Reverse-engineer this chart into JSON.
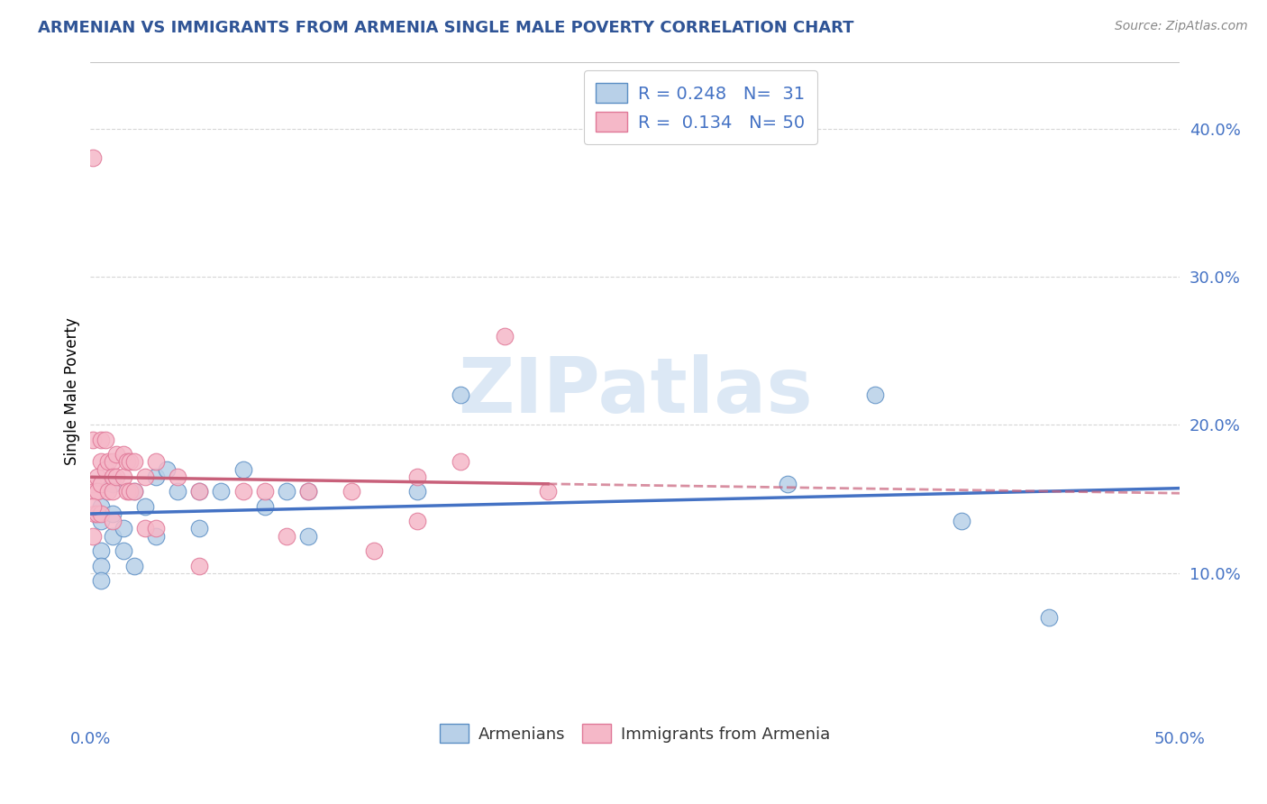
{
  "title": "ARMENIAN VS IMMIGRANTS FROM ARMENIA SINGLE MALE POVERTY CORRELATION CHART",
  "source": "Source: ZipAtlas.com",
  "ylabel": "Single Male Poverty",
  "xlim": [
    0.0,
    0.5
  ],
  "ylim": [
    0.0,
    0.445
  ],
  "yticks": [
    0.1,
    0.2,
    0.3,
    0.4
  ],
  "ytick_labels": [
    "10.0%",
    "20.0%",
    "30.0%",
    "40.0%"
  ],
  "blue_R": 0.248,
  "blue_N": 31,
  "pink_R": 0.134,
  "pink_N": 50,
  "blue_color": "#b8d0e8",
  "pink_color": "#f5b8c8",
  "blue_edge_color": "#5b8ec4",
  "pink_edge_color": "#e07898",
  "blue_line_color": "#4472c4",
  "pink_line_color": "#c8607a",
  "watermark": "ZIPatlas",
  "watermark_color": "#dce8f5",
  "background_color": "#ffffff",
  "grid_color": "#cccccc",
  "legend_text_color": "#4472c4",
  "title_color": "#2f5496",
  "blue_scatter_x": [
    0.005,
    0.005,
    0.005,
    0.005,
    0.005,
    0.01,
    0.01,
    0.01,
    0.015,
    0.015,
    0.02,
    0.02,
    0.025,
    0.03,
    0.03,
    0.035,
    0.04,
    0.05,
    0.05,
    0.06,
    0.07,
    0.08,
    0.09,
    0.1,
    0.1,
    0.15,
    0.17,
    0.32,
    0.36,
    0.4,
    0.44
  ],
  "blue_scatter_y": [
    0.145,
    0.135,
    0.115,
    0.105,
    0.095,
    0.16,
    0.14,
    0.125,
    0.13,
    0.115,
    0.155,
    0.105,
    0.145,
    0.165,
    0.125,
    0.17,
    0.155,
    0.155,
    0.13,
    0.155,
    0.17,
    0.145,
    0.155,
    0.155,
    0.125,
    0.155,
    0.22,
    0.16,
    0.22,
    0.135,
    0.07
  ],
  "pink_scatter_x": [
    0.001,
    0.001,
    0.001,
    0.002,
    0.002,
    0.003,
    0.003,
    0.003,
    0.005,
    0.005,
    0.005,
    0.005,
    0.007,
    0.007,
    0.008,
    0.008,
    0.01,
    0.01,
    0.01,
    0.01,
    0.012,
    0.012,
    0.015,
    0.015,
    0.017,
    0.017,
    0.018,
    0.018,
    0.02,
    0.02,
    0.025,
    0.025,
    0.03,
    0.03,
    0.04,
    0.05,
    0.05,
    0.07,
    0.08,
    0.09,
    0.1,
    0.12,
    0.13,
    0.15,
    0.15,
    0.17,
    0.19,
    0.21,
    0.001,
    0.001
  ],
  "pink_scatter_y": [
    0.38,
    0.19,
    0.16,
    0.155,
    0.14,
    0.165,
    0.155,
    0.14,
    0.19,
    0.175,
    0.16,
    0.14,
    0.19,
    0.17,
    0.175,
    0.155,
    0.175,
    0.165,
    0.155,
    0.135,
    0.18,
    0.165,
    0.18,
    0.165,
    0.175,
    0.155,
    0.175,
    0.155,
    0.175,
    0.155,
    0.165,
    0.13,
    0.175,
    0.13,
    0.165,
    0.155,
    0.105,
    0.155,
    0.155,
    0.125,
    0.155,
    0.155,
    0.115,
    0.165,
    0.135,
    0.175,
    0.26,
    0.155,
    0.145,
    0.125
  ]
}
